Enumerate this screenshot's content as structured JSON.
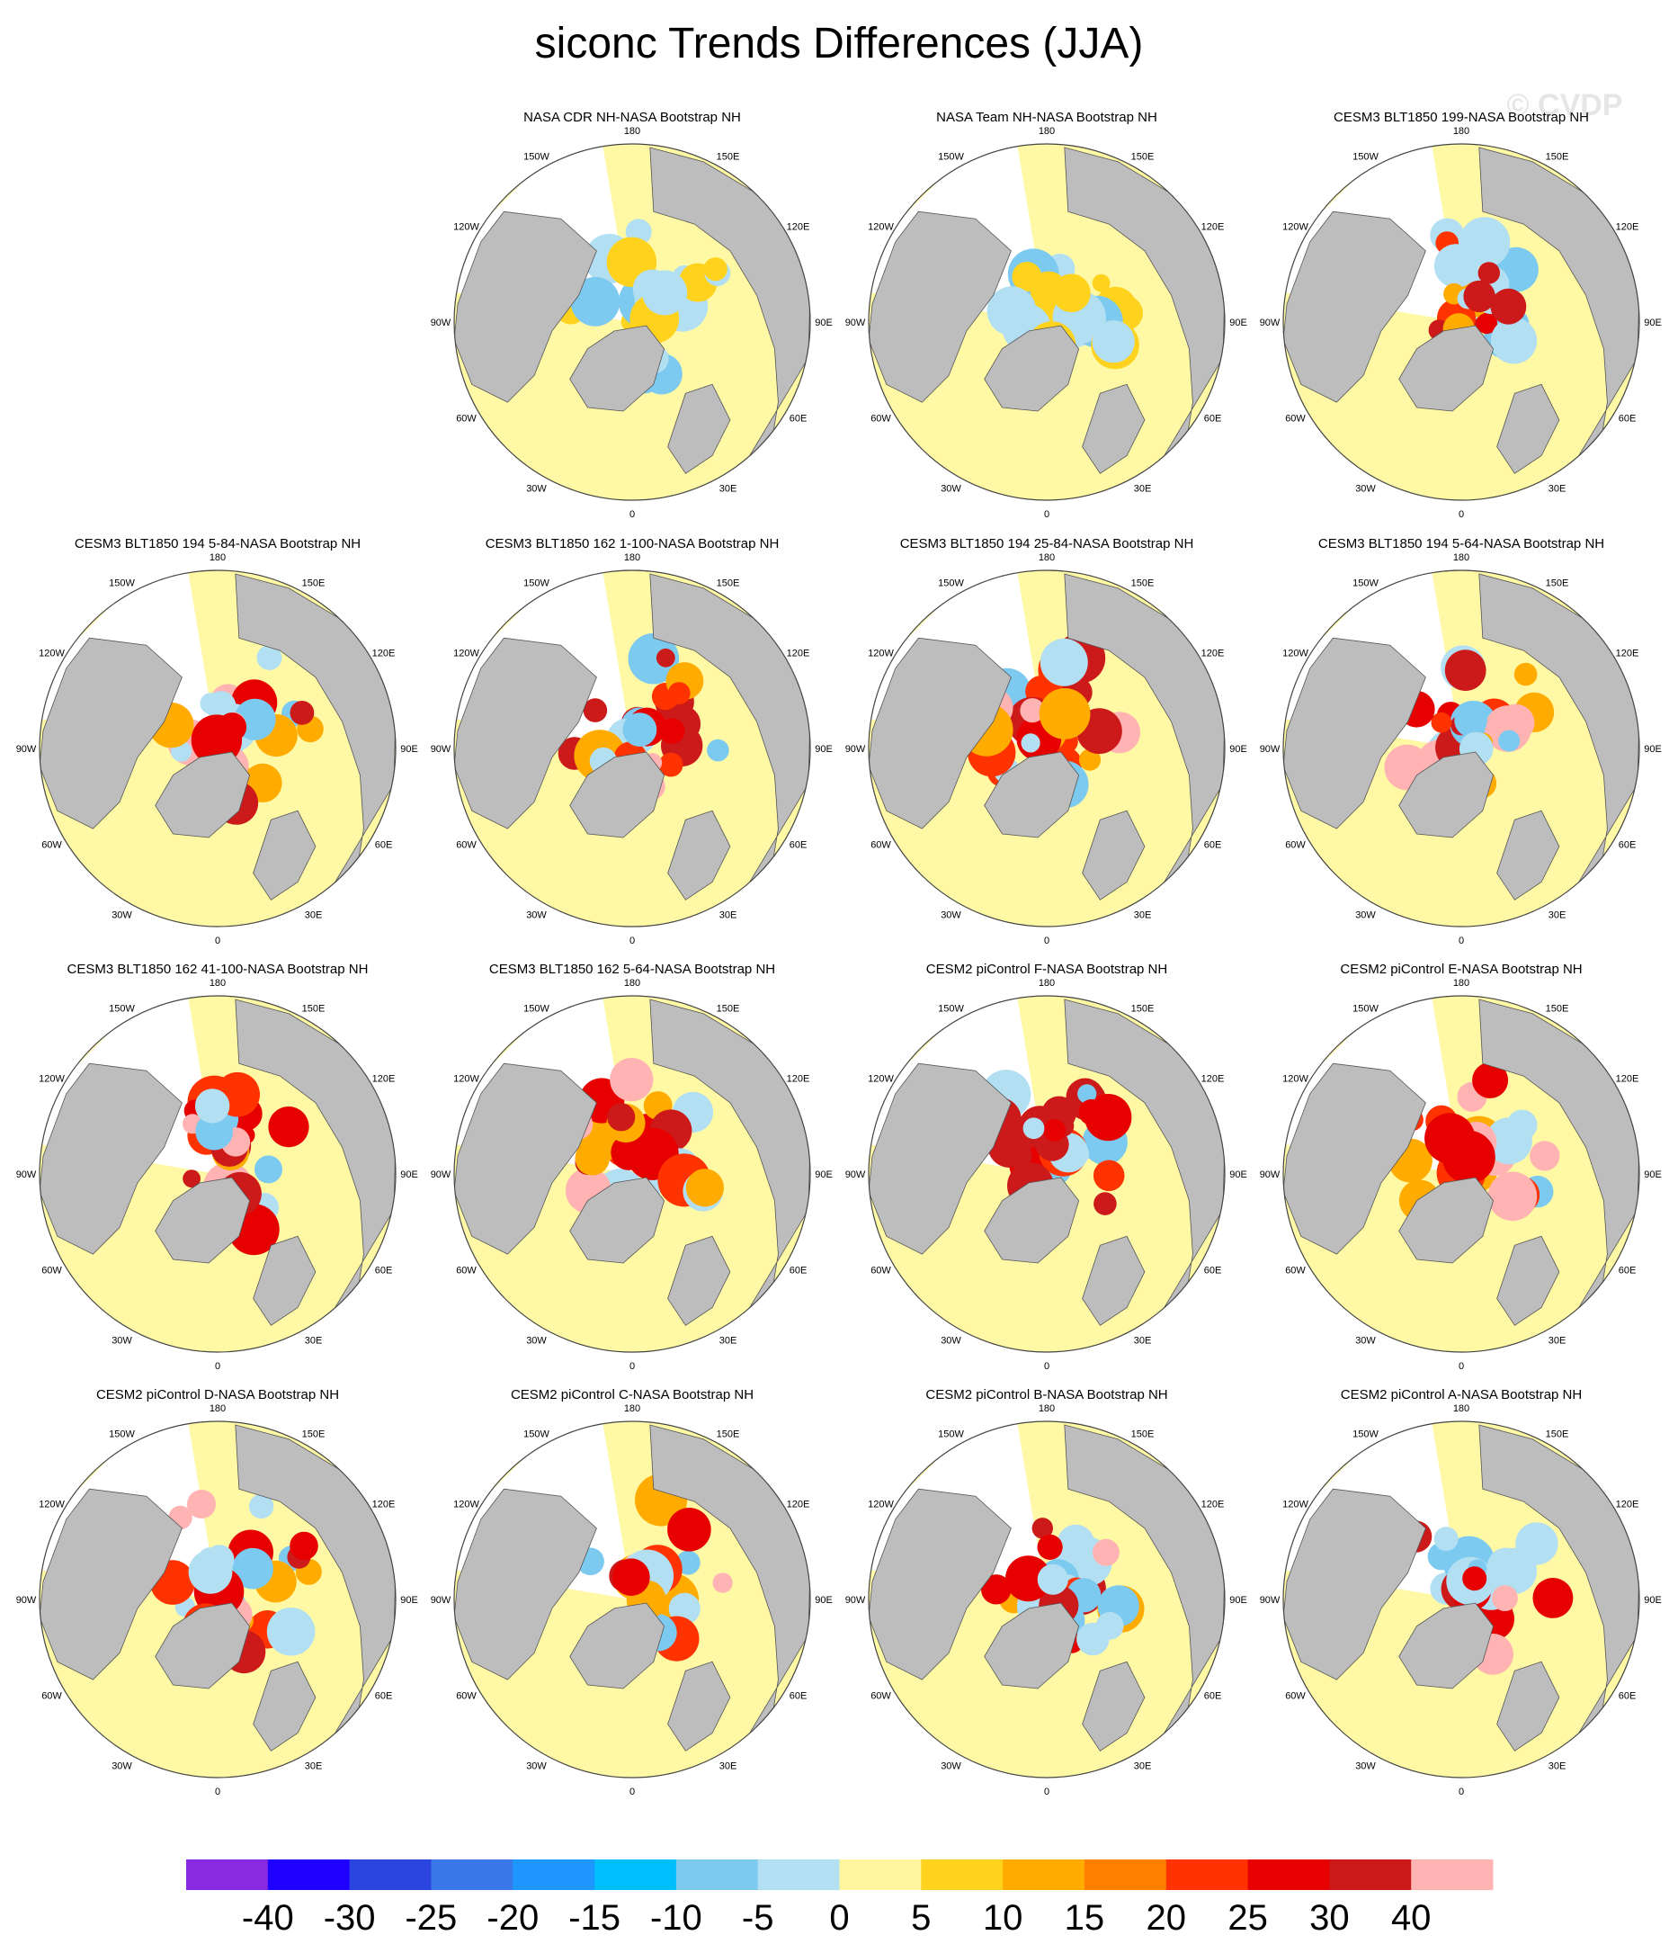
{
  "title": "siconc Trends Differences (JJA)",
  "watermark": "© CVDP",
  "colors": {
    "land": "#bdbdbd",
    "ocean_background": "#fff9a6",
    "map_outline": "#444444",
    "missing": "#ffffff"
  },
  "lon_labels": [
    "180",
    "150E",
    "120E",
    "90E",
    "60E",
    "30E",
    "0",
    "30W",
    "60W",
    "90W",
    "120W",
    "150W"
  ],
  "colorbar": {
    "labels": [
      "-40",
      "-30",
      "-25",
      "-20",
      "-15",
      "-10",
      "-5",
      "0",
      "5",
      "10",
      "15",
      "20",
      "25",
      "30",
      "40"
    ],
    "colors": [
      "#8a2be2",
      "#1f00ff",
      "#2b46e0",
      "#3a78e8",
      "#1e96ff",
      "#00bfff",
      "#7ccaf0",
      "#b3dff2",
      "#fff59d",
      "#ffd21e",
      "#ffab00",
      "#ff7f00",
      "#ff3300",
      "#e60000",
      "#cc1a1a",
      "#ffb3b3"
    ]
  },
  "chart_data": [
    {
      "type": "heatmap",
      "title": "NASA CDR NH-NASA Bootstrap NH",
      "projection": "north polar stereographic",
      "season": "JJA",
      "units": "percent trend difference"
    },
    {
      "type": "heatmap",
      "title": "NASA Team NH-NASA Bootstrap NH",
      "projection": "north polar stereographic",
      "season": "JJA",
      "units": "percent trend difference"
    },
    {
      "type": "heatmap",
      "title": "CESM3 BLT1850 199-NASA Bootstrap NH",
      "projection": "north polar stereographic",
      "season": "JJA",
      "units": "percent trend difference"
    },
    {
      "type": "heatmap",
      "title": "CESM3 BLT1850 194 5-84-NASA Bootstrap NH",
      "projection": "north polar stereographic",
      "season": "JJA",
      "units": "percent trend difference"
    },
    {
      "type": "heatmap",
      "title": "CESM3 BLT1850 162 1-100-NASA Bootstrap NH",
      "projection": "north polar stereographic",
      "season": "JJA",
      "units": "percent trend difference"
    },
    {
      "type": "heatmap",
      "title": "CESM3 BLT1850 194 25-84-NASA Bootstrap NH",
      "projection": "north polar stereographic",
      "season": "JJA",
      "units": "percent trend difference"
    },
    {
      "type": "heatmap",
      "title": "CESM3 BLT1850 194 5-64-NASA Bootstrap NH",
      "projection": "north polar stereographic",
      "season": "JJA",
      "units": "percent trend difference"
    },
    {
      "type": "heatmap",
      "title": "CESM3 BLT1850 162 41-100-NASA Bootstrap NH",
      "projection": "north polar stereographic",
      "season": "JJA",
      "units": "percent trend difference"
    },
    {
      "type": "heatmap",
      "title": "CESM3 BLT1850 162 5-64-NASA Bootstrap NH",
      "projection": "north polar stereographic",
      "season": "JJA",
      "units": "percent trend difference"
    },
    {
      "type": "heatmap",
      "title": "CESM2 piControl F-NASA Bootstrap NH",
      "projection": "north polar stereographic",
      "season": "JJA",
      "units": "percent trend difference"
    },
    {
      "type": "heatmap",
      "title": "CESM2 piControl E-NASA Bootstrap NH",
      "projection": "north polar stereographic",
      "season": "JJA",
      "units": "percent trend difference"
    },
    {
      "type": "heatmap",
      "title": "CESM2 piControl D-NASA Bootstrap NH",
      "projection": "north polar stereographic",
      "season": "JJA",
      "units": "percent trend difference"
    },
    {
      "type": "heatmap",
      "title": "CESM2 piControl C-NASA Bootstrap NH",
      "projection": "north polar stereographic",
      "season": "JJA",
      "units": "percent trend difference"
    },
    {
      "type": "heatmap",
      "title": "CESM2 piControl B-NASA Bootstrap NH",
      "projection": "north polar stereographic",
      "season": "JJA",
      "units": "percent trend difference"
    },
    {
      "type": "heatmap",
      "title": "CESM2 piControl A-NASA Bootstrap NH",
      "projection": "north polar stereographic",
      "season": "JJA",
      "units": "percent trend difference"
    }
  ]
}
